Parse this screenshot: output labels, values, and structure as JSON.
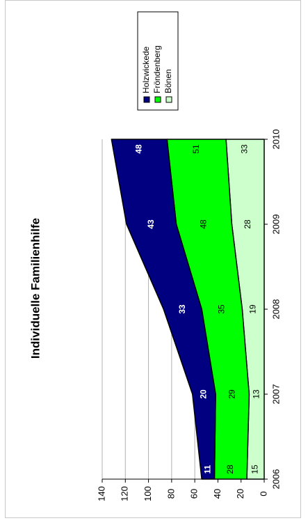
{
  "chart_data": {
    "type": "area",
    "stacked": true,
    "orientation": "rotated-90-ccw",
    "title": "Individuelle Familienhilfe",
    "categories": [
      "2006",
      "2007",
      "2008",
      "2009",
      "2010"
    ],
    "series": [
      {
        "name": "Bönen",
        "values": [
          15,
          13,
          19,
          28,
          33
        ],
        "color": "#ccffcc",
        "label_color": "#000000",
        "label_bold": false
      },
      {
        "name": "Fröndenberg",
        "values": [
          28,
          29,
          35,
          48,
          51
        ],
        "color": "#00ff00",
        "label_color": "#000000",
        "label_bold": false
      },
      {
        "name": "Holzwickede",
        "values": [
          11,
          20,
          33,
          43,
          48
        ],
        "color": "#000080",
        "label_color": "#ffffff",
        "label_bold": true
      }
    ],
    "yticks": [
      0,
      20,
      40,
      60,
      80,
      100,
      120,
      140
    ],
    "ylim": [
      0,
      140
    ],
    "grid": true,
    "legend_placement": "top-right",
    "legend_order": [
      "Holzwickede",
      "Fröndenberg",
      "Bönen"
    ]
  }
}
